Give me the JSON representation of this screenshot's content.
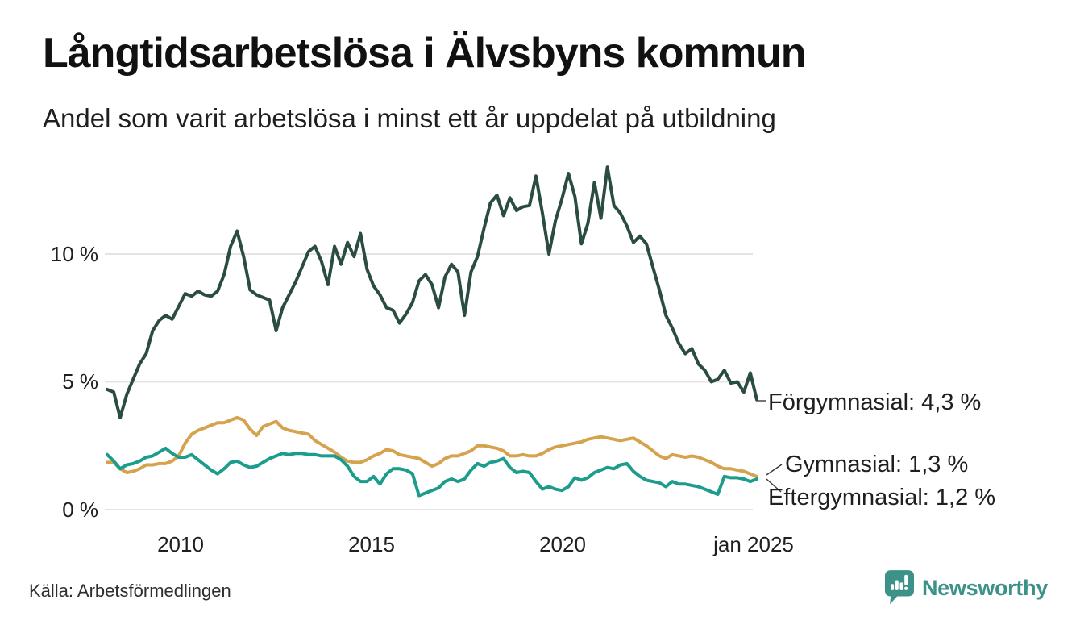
{
  "header": {
    "title": "Långtidsarbetslösa i Älvsbyns kommun",
    "subtitle": "Andel som varit arbetslösa i minst ett år uppdelat på utbildning"
  },
  "footer": {
    "source": "Källa: Arbetsförmedlingen",
    "brand": {
      "name": "Newsworthy",
      "color": "#3c9289"
    }
  },
  "chart_data": {
    "type": "line",
    "title": "Långtidsarbetslösa i Älvsbyns kommun",
    "subtitle": "Andel som varit arbetslösa i minst ett år uppdelat på utbildning",
    "x_range_approx": [
      "2008",
      "jan 2025"
    ],
    "x_ticks": [
      "2010",
      "2015",
      "2020",
      "jan 2025"
    ],
    "y_ticks": [
      {
        "label": "0 %",
        "value": 0
      },
      {
        "label": "5 %",
        "value": 5
      },
      {
        "label": "10 %",
        "value": 10
      }
    ],
    "ylim": [
      0,
      14
    ],
    "grid": "horizontal",
    "legend_position": "right-end-labels",
    "unit": "%",
    "series": [
      {
        "name": "Förgymnasial",
        "color": "#2a4c42",
        "end_label": "Förgymnasial: 4,3 %",
        "end_value": 4.3,
        "values": [
          4.7,
          4.6,
          3.6,
          4.5,
          5.1,
          5.7,
          6.1,
          7.0,
          7.4,
          7.6,
          7.45,
          7.95,
          8.45,
          8.35,
          8.55,
          8.4,
          8.35,
          8.55,
          9.2,
          10.3,
          10.9,
          9.9,
          8.6,
          8.4,
          8.3,
          8.2,
          7.0,
          7.9,
          8.4,
          8.9,
          9.5,
          10.1,
          10.3,
          9.7,
          8.8,
          10.3,
          9.6,
          10.45,
          9.9,
          10.8,
          9.4,
          8.75,
          8.4,
          7.9,
          7.8,
          7.3,
          7.65,
          8.1,
          8.95,
          9.2,
          8.8,
          7.9,
          9.1,
          9.6,
          9.3,
          7.6,
          9.3,
          9.9,
          11.0,
          12.0,
          12.3,
          11.5,
          12.2,
          11.7,
          11.85,
          11.9,
          13.05,
          11.6,
          10.0,
          11.3,
          12.15,
          13.15,
          12.25,
          10.4,
          11.2,
          12.8,
          11.4,
          13.4,
          11.9,
          11.6,
          11.1,
          10.45,
          10.7,
          10.4,
          9.5,
          8.6,
          7.6,
          7.1,
          6.5,
          6.1,
          6.3,
          5.7,
          5.45,
          5.0,
          5.1,
          5.45,
          4.95,
          5.0,
          4.6,
          5.35,
          4.3
        ]
      },
      {
        "name": "Gymnasial",
        "color": "#d5a24d",
        "end_label": "Gymnasial: 1,3 %",
        "end_value": 1.3,
        "values": [
          1.85,
          1.85,
          1.6,
          1.45,
          1.5,
          1.6,
          1.75,
          1.75,
          1.8,
          1.8,
          1.9,
          2.1,
          2.6,
          2.95,
          3.1,
          3.2,
          3.3,
          3.4,
          3.4,
          3.5,
          3.6,
          3.5,
          3.15,
          2.9,
          3.25,
          3.35,
          3.45,
          3.2,
          3.1,
          3.05,
          3.0,
          2.95,
          2.7,
          2.55,
          2.4,
          2.25,
          2.05,
          1.9,
          1.85,
          1.85,
          1.95,
          2.1,
          2.2,
          2.35,
          2.3,
          2.15,
          2.1,
          2.05,
          2.0,
          1.85,
          1.7,
          1.8,
          2.0,
          2.1,
          2.1,
          2.2,
          2.3,
          2.5,
          2.5,
          2.45,
          2.4,
          2.3,
          2.1,
          2.1,
          2.15,
          2.1,
          2.1,
          2.2,
          2.35,
          2.45,
          2.5,
          2.55,
          2.6,
          2.65,
          2.75,
          2.8,
          2.85,
          2.8,
          2.75,
          2.7,
          2.75,
          2.8,
          2.65,
          2.5,
          2.3,
          2.1,
          2.0,
          2.15,
          2.1,
          2.05,
          2.1,
          2.05,
          1.95,
          1.85,
          1.7,
          1.6,
          1.6,
          1.55,
          1.5,
          1.4,
          1.3
        ]
      },
      {
        "name": "Eftergymnasial",
        "color": "#1b9c8c",
        "end_label": "Eftergymnasial: 1,2 %",
        "end_value": 1.2,
        "values": [
          2.15,
          1.9,
          1.6,
          1.75,
          1.8,
          1.9,
          2.05,
          2.1,
          2.25,
          2.4,
          2.2,
          2.05,
          2.05,
          2.15,
          1.95,
          1.75,
          1.55,
          1.4,
          1.6,
          1.85,
          1.9,
          1.75,
          1.65,
          1.7,
          1.85,
          2.0,
          2.1,
          2.2,
          2.15,
          2.2,
          2.2,
          2.15,
          2.15,
          2.1,
          2.1,
          2.1,
          1.95,
          1.7,
          1.3,
          1.1,
          1.1,
          1.3,
          1.0,
          1.4,
          1.6,
          1.6,
          1.55,
          1.4,
          0.55,
          0.65,
          0.75,
          0.85,
          1.1,
          1.2,
          1.1,
          1.2,
          1.55,
          1.8,
          1.7,
          1.85,
          1.9,
          2.0,
          1.65,
          1.45,
          1.5,
          1.45,
          1.1,
          0.8,
          0.9,
          0.8,
          0.75,
          0.9,
          1.25,
          1.15,
          1.25,
          1.45,
          1.55,
          1.65,
          1.6,
          1.75,
          1.8,
          1.5,
          1.3,
          1.15,
          1.1,
          1.05,
          0.9,
          1.1,
          1.0,
          1.0,
          0.95,
          0.9,
          0.8,
          0.7,
          0.6,
          1.3,
          1.25,
          1.25,
          1.2,
          1.1,
          1.2
        ]
      }
    ]
  }
}
